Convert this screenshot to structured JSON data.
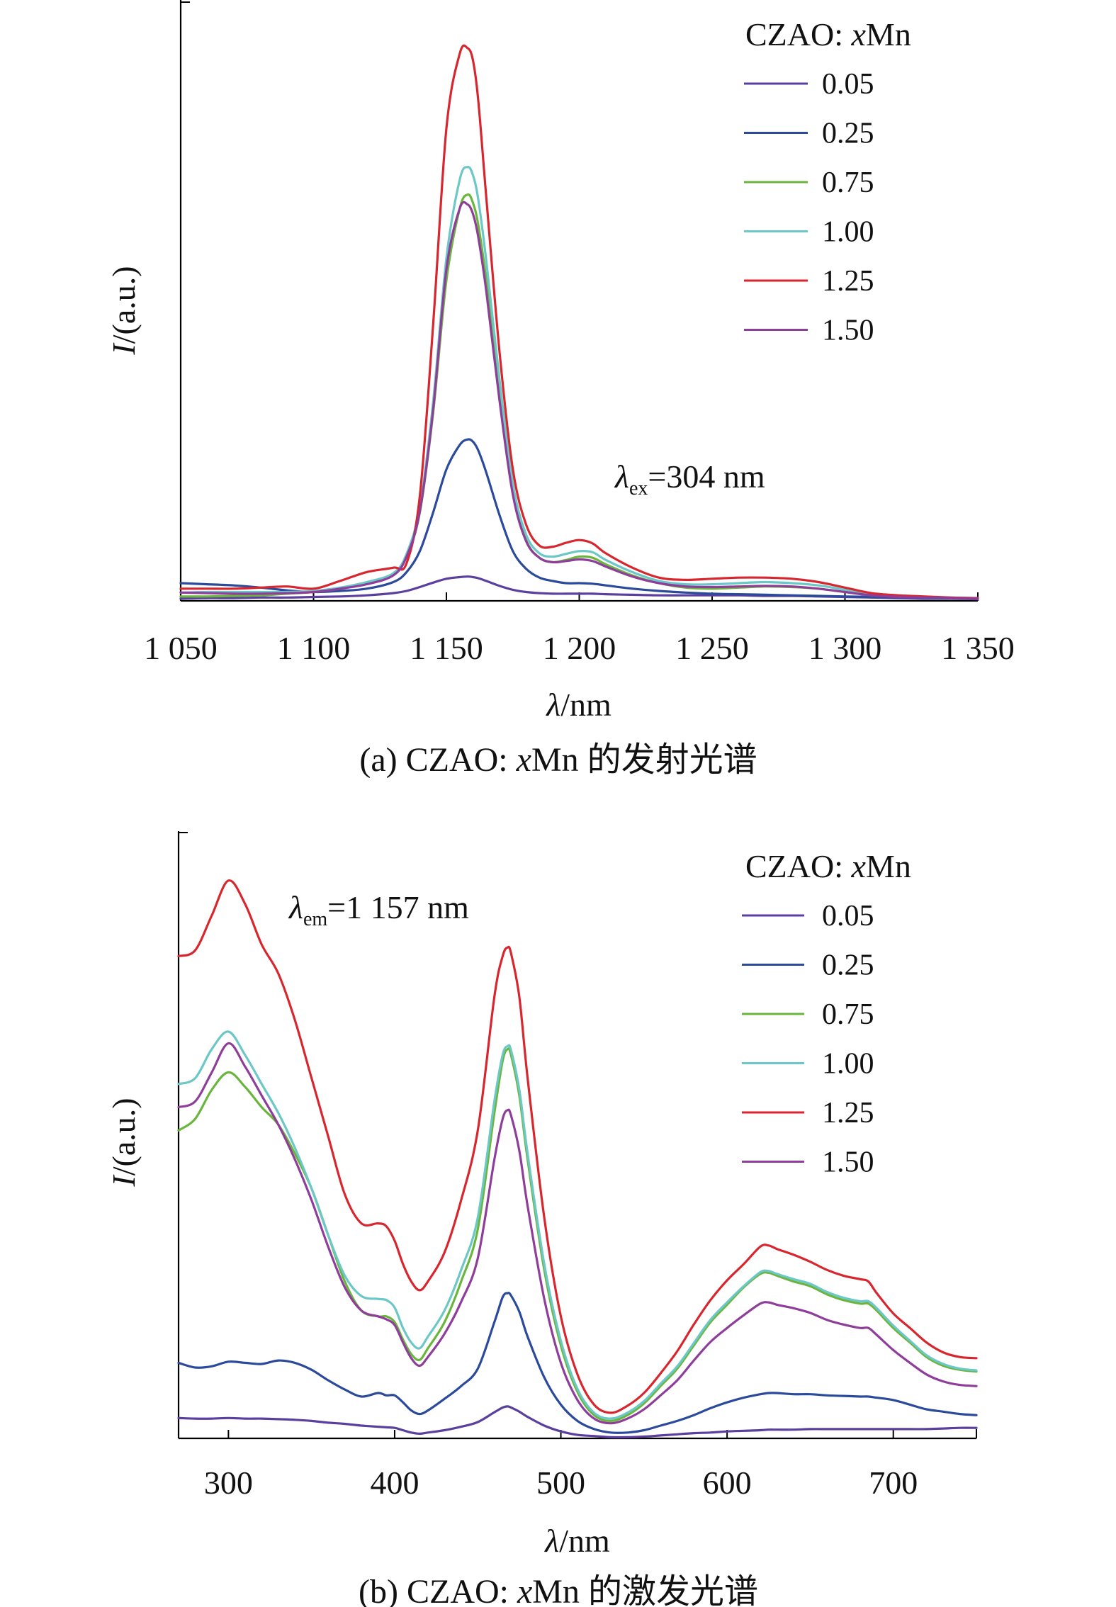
{
  "chart_data": [
    {
      "id": "a",
      "type": "line",
      "caption": "(a) CZAO: xMn 的发射光谱",
      "caption_parts": {
        "prefix": "(a) CZAO: ",
        "var": "x",
        "suffix": "Mn 的发射光谱"
      },
      "xlabel": {
        "sym": "λ",
        "unit": "/nm"
      },
      "ylabel": {
        "sym": "I",
        "unit": "/(a.u.)"
      },
      "xlim": [
        1050,
        1350
      ],
      "ylim": [
        0,
        1.0
      ],
      "xticks": [
        {
          "v": 1050,
          "label": "1 050"
        },
        {
          "v": 1100,
          "label": "1 100"
        },
        {
          "v": 1150,
          "label": "1 150"
        },
        {
          "v": 1200,
          "label": "1 200"
        },
        {
          "v": 1250,
          "label": "1 250"
        },
        {
          "v": 1300,
          "label": "1 300"
        },
        {
          "v": 1350,
          "label": "1 350"
        }
      ],
      "annotation": {
        "sym": "λ",
        "sub": "ex",
        "text": "=304 nm"
      },
      "legend": {
        "title_prefix": "CZAO: ",
        "title_var": "x",
        "title_suffix": "Mn",
        "position": "top-right"
      },
      "x": [
        1050,
        1060,
        1070,
        1080,
        1090,
        1100,
        1110,
        1120,
        1130,
        1135,
        1140,
        1145,
        1150,
        1155,
        1158,
        1160,
        1162,
        1165,
        1170,
        1175,
        1180,
        1185,
        1190,
        1195,
        1200,
        1205,
        1210,
        1220,
        1230,
        1240,
        1250,
        1260,
        1270,
        1280,
        1290,
        1300,
        1310,
        1320,
        1330,
        1340,
        1350
      ],
      "series": [
        {
          "name": "0.05",
          "color": "#5b3f9e",
          "values": [
            0.004,
            0.005,
            0.005,
            0.006,
            0.006,
            0.007,
            0.008,
            0.01,
            0.014,
            0.018,
            0.025,
            0.033,
            0.04,
            0.043,
            0.044,
            0.043,
            0.041,
            0.036,
            0.027,
            0.02,
            0.016,
            0.014,
            0.013,
            0.013,
            0.013,
            0.013,
            0.012,
            0.011,
            0.01,
            0.01,
            0.01,
            0.01,
            0.009,
            0.009,
            0.008,
            0.007,
            0.006,
            0.005,
            0.004,
            0.004,
            0.003
          ]
        },
        {
          "name": "0.25",
          "color": "#2b4a9c",
          "values": [
            0.032,
            0.03,
            0.028,
            0.024,
            0.019,
            0.016,
            0.018,
            0.022,
            0.034,
            0.052,
            0.09,
            0.16,
            0.238,
            0.282,
            0.292,
            0.288,
            0.272,
            0.232,
            0.155,
            0.09,
            0.058,
            0.042,
            0.036,
            0.032,
            0.032,
            0.031,
            0.028,
            0.022,
            0.018,
            0.015,
            0.013,
            0.012,
            0.011,
            0.01,
            0.009,
            0.008,
            0.007,
            0.006,
            0.005,
            0.004,
            0.004
          ]
        },
        {
          "name": "0.75",
          "color": "#6ab63c",
          "values": [
            0.008,
            0.008,
            0.009,
            0.01,
            0.013,
            0.016,
            0.022,
            0.032,
            0.048,
            0.08,
            0.16,
            0.34,
            0.58,
            0.71,
            0.735,
            0.72,
            0.68,
            0.58,
            0.38,
            0.2,
            0.11,
            0.078,
            0.07,
            0.074,
            0.08,
            0.078,
            0.066,
            0.046,
            0.032,
            0.024,
            0.022,
            0.024,
            0.026,
            0.025,
            0.022,
            0.016,
            0.01,
            0.008,
            0.006,
            0.005,
            0.004
          ]
        },
        {
          "name": "1.00",
          "color": "#6cc7c7",
          "values": [
            0.015,
            0.016,
            0.016,
            0.016,
            0.016,
            0.018,
            0.024,
            0.034,
            0.05,
            0.085,
            0.17,
            0.36,
            0.62,
            0.762,
            0.785,
            0.77,
            0.726,
            0.615,
            0.4,
            0.212,
            0.12,
            0.086,
            0.08,
            0.085,
            0.09,
            0.088,
            0.074,
            0.052,
            0.036,
            0.03,
            0.03,
            0.032,
            0.034,
            0.032,
            0.028,
            0.02,
            0.012,
            0.009,
            0.007,
            0.006,
            0.005
          ]
        },
        {
          "name": "1.25",
          "color": "#d8262e",
          "values": [
            0.022,
            0.022,
            0.022,
            0.024,
            0.026,
            0.022,
            0.036,
            0.052,
            0.06,
            0.068,
            0.19,
            0.5,
            0.855,
            0.99,
            1.0,
            0.978,
            0.905,
            0.73,
            0.45,
            0.238,
            0.138,
            0.1,
            0.098,
            0.105,
            0.11,
            0.104,
            0.086,
            0.06,
            0.042,
            0.038,
            0.04,
            0.042,
            0.042,
            0.04,
            0.034,
            0.024,
            0.014,
            0.01,
            0.008,
            0.006,
            0.005
          ]
        },
        {
          "name": "1.50",
          "color": "#8e3d9a",
          "values": [
            0.015,
            0.014,
            0.013,
            0.013,
            0.014,
            0.016,
            0.022,
            0.03,
            0.046,
            0.08,
            0.162,
            0.346,
            0.6,
            0.71,
            0.717,
            0.7,
            0.658,
            0.56,
            0.362,
            0.192,
            0.108,
            0.078,
            0.07,
            0.072,
            0.075,
            0.072,
            0.062,
            0.044,
            0.032,
            0.026,
            0.025,
            0.026,
            0.027,
            0.026,
            0.022,
            0.016,
            0.01,
            0.007,
            0.006,
            0.005,
            0.004
          ]
        }
      ]
    },
    {
      "id": "b",
      "type": "line",
      "caption": "(b) CZAO: xMn 的激发光谱",
      "caption_parts": {
        "prefix": "(b) CZAO: ",
        "var": "x",
        "suffix": "Mn 的激发光谱"
      },
      "xlabel": {
        "sym": "λ",
        "unit": "/nm"
      },
      "ylabel": {
        "sym": "I",
        "unit": "/(a.u.)"
      },
      "xlim": [
        270,
        750
      ],
      "ylim": [
        0,
        1.0
      ],
      "xticks": [
        {
          "v": 300,
          "label": "300"
        },
        {
          "v": 400,
          "label": "400"
        },
        {
          "v": 500,
          "label": "500"
        },
        {
          "v": 600,
          "label": "600"
        },
        {
          "v": 700,
          "label": "700"
        }
      ],
      "annotation": {
        "sym": "λ",
        "sub": "em",
        "text": "=1 157 nm"
      },
      "legend": {
        "title_prefix": "CZAO: ",
        "title_var": "x",
        "title_suffix": "Mn",
        "position": "top-right"
      },
      "x": [
        270,
        280,
        290,
        300,
        310,
        320,
        330,
        340,
        350,
        360,
        370,
        380,
        390,
        395,
        400,
        405,
        410,
        415,
        420,
        430,
        440,
        450,
        460,
        465,
        468,
        470,
        475,
        480,
        490,
        500,
        510,
        520,
        530,
        540,
        550,
        560,
        570,
        580,
        590,
        600,
        610,
        620,
        625,
        630,
        640,
        650,
        660,
        670,
        680,
        685,
        690,
        700,
        710,
        720,
        730,
        740,
        750
      ],
      "series": [
        {
          "name": "0.05",
          "color": "#5b3f9e",
          "values": [
            0.035,
            0.034,
            0.034,
            0.035,
            0.034,
            0.034,
            0.033,
            0.032,
            0.03,
            0.027,
            0.025,
            0.022,
            0.02,
            0.019,
            0.018,
            0.014,
            0.01,
            0.008,
            0.01,
            0.014,
            0.02,
            0.028,
            0.045,
            0.053,
            0.055,
            0.053,
            0.046,
            0.037,
            0.022,
            0.012,
            0.006,
            0.004,
            0.002,
            0.002,
            0.003,
            0.005,
            0.007,
            0.009,
            0.01,
            0.012,
            0.013,
            0.014,
            0.015,
            0.015,
            0.015,
            0.016,
            0.016,
            0.016,
            0.016,
            0.016,
            0.016,
            0.016,
            0.016,
            0.016,
            0.017,
            0.018,
            0.018
          ]
        },
        {
          "name": "0.25",
          "color": "#2b4a9c",
          "values": [
            0.13,
            0.122,
            0.124,
            0.132,
            0.13,
            0.128,
            0.134,
            0.13,
            0.118,
            0.1,
            0.084,
            0.072,
            0.078,
            0.074,
            0.074,
            0.062,
            0.048,
            0.042,
            0.048,
            0.068,
            0.09,
            0.12,
            0.2,
            0.243,
            0.25,
            0.246,
            0.218,
            0.175,
            0.105,
            0.058,
            0.03,
            0.016,
            0.01,
            0.01,
            0.014,
            0.022,
            0.03,
            0.04,
            0.052,
            0.062,
            0.07,
            0.076,
            0.078,
            0.078,
            0.076,
            0.076,
            0.074,
            0.073,
            0.072,
            0.072,
            0.07,
            0.066,
            0.058,
            0.05,
            0.046,
            0.042,
            0.04
          ]
        },
        {
          "name": "0.75",
          "color": "#6ab63c",
          "values": [
            0.53,
            0.55,
            0.6,
            0.63,
            0.605,
            0.57,
            0.54,
            0.49,
            0.43,
            0.35,
            0.27,
            0.22,
            0.21,
            0.21,
            0.2,
            0.17,
            0.145,
            0.135,
            0.155,
            0.2,
            0.27,
            0.36,
            0.56,
            0.65,
            0.67,
            0.66,
            0.59,
            0.48,
            0.29,
            0.16,
            0.08,
            0.04,
            0.03,
            0.04,
            0.06,
            0.09,
            0.12,
            0.16,
            0.2,
            0.23,
            0.26,
            0.283,
            0.285,
            0.28,
            0.27,
            0.262,
            0.248,
            0.238,
            0.232,
            0.232,
            0.22,
            0.19,
            0.165,
            0.14,
            0.125,
            0.118,
            0.115
          ]
        },
        {
          "name": "1.00",
          "color": "#6cc7c7",
          "values": [
            0.61,
            0.62,
            0.67,
            0.7,
            0.66,
            0.61,
            0.56,
            0.5,
            0.43,
            0.35,
            0.28,
            0.245,
            0.24,
            0.238,
            0.225,
            0.19,
            0.165,
            0.155,
            0.175,
            0.22,
            0.29,
            0.38,
            0.58,
            0.66,
            0.675,
            0.668,
            0.6,
            0.49,
            0.3,
            0.168,
            0.085,
            0.044,
            0.034,
            0.044,
            0.064,
            0.094,
            0.124,
            0.164,
            0.204,
            0.234,
            0.262,
            0.286,
            0.288,
            0.283,
            0.274,
            0.266,
            0.252,
            0.242,
            0.236,
            0.236,
            0.224,
            0.194,
            0.168,
            0.143,
            0.128,
            0.12,
            0.117
          ]
        },
        {
          "name": "1.25",
          "color": "#d8262e",
          "values": [
            0.83,
            0.84,
            0.9,
            0.96,
            0.92,
            0.85,
            0.8,
            0.72,
            0.62,
            0.52,
            0.42,
            0.37,
            0.37,
            0.365,
            0.34,
            0.3,
            0.27,
            0.255,
            0.27,
            0.32,
            0.41,
            0.53,
            0.76,
            0.83,
            0.845,
            0.835,
            0.76,
            0.62,
            0.38,
            0.21,
            0.11,
            0.058,
            0.044,
            0.056,
            0.078,
            0.112,
            0.15,
            0.196,
            0.238,
            0.272,
            0.3,
            0.33,
            0.332,
            0.326,
            0.316,
            0.304,
            0.29,
            0.28,
            0.274,
            0.27,
            0.25,
            0.215,
            0.19,
            0.165,
            0.148,
            0.14,
            0.138
          ]
        },
        {
          "name": "1.50",
          "color": "#8e3d9a",
          "values": [
            0.57,
            0.58,
            0.63,
            0.68,
            0.64,
            0.59,
            0.54,
            0.48,
            0.41,
            0.33,
            0.26,
            0.22,
            0.21,
            0.205,
            0.195,
            0.165,
            0.138,
            0.125,
            0.14,
            0.18,
            0.235,
            0.31,
            0.48,
            0.55,
            0.565,
            0.556,
            0.495,
            0.4,
            0.24,
            0.13,
            0.066,
            0.034,
            0.026,
            0.034,
            0.05,
            0.074,
            0.1,
            0.134,
            0.166,
            0.19,
            0.212,
            0.232,
            0.234,
            0.23,
            0.224,
            0.216,
            0.204,
            0.196,
            0.19,
            0.19,
            0.178,
            0.152,
            0.13,
            0.11,
            0.098,
            0.092,
            0.09
          ]
        }
      ]
    }
  ]
}
